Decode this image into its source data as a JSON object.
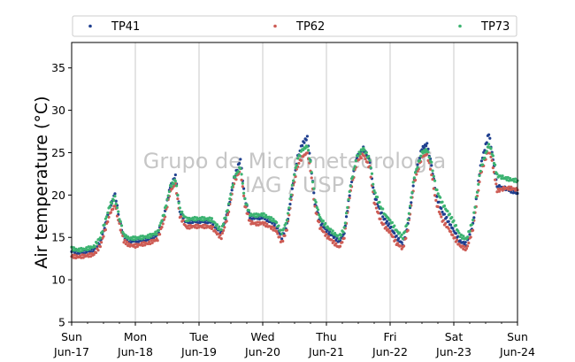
{
  "chart_data": {
    "type": "scatter",
    "ylabel": "Air temperature (°C)",
    "ylim": [
      5,
      38
    ],
    "yticks": [
      5,
      10,
      15,
      20,
      25,
      30,
      35
    ],
    "xlim_days": [
      17,
      24
    ],
    "x_ticks": [
      {
        "day": "Sun",
        "date": "Jun-17"
      },
      {
        "day": "Mon",
        "date": "Jun-18"
      },
      {
        "day": "Tue",
        "date": "Jun-19"
      },
      {
        "day": "Wed",
        "date": "Jun-20"
      },
      {
        "day": "Thu",
        "date": "Jun-21"
      },
      {
        "day": "Fri",
        "date": "Jun-22"
      },
      {
        "day": "Sat",
        "date": "Jun-23"
      },
      {
        "day": "Sun",
        "date": "Jun-24"
      }
    ],
    "grid": "vertical",
    "legend_placement": "top",
    "watermark": [
      "Grupo de Micrometeorologia",
      "IAG / USP"
    ],
    "series": [
      {
        "name": "TP41",
        "color": "#1f3f8f",
        "points": [
          [
            17.0,
            13.4
          ],
          [
            17.1,
            13.2
          ],
          [
            17.2,
            13.3
          ],
          [
            17.35,
            13.5
          ],
          [
            17.45,
            14.5
          ],
          [
            17.55,
            17.0
          ],
          [
            17.6,
            18.5
          ],
          [
            17.68,
            20.2
          ],
          [
            17.75,
            17.0
          ],
          [
            17.82,
            15.0
          ],
          [
            17.9,
            14.6
          ],
          [
            18.0,
            14.6
          ],
          [
            18.1,
            14.7
          ],
          [
            18.2,
            14.8
          ],
          [
            18.35,
            15.3
          ],
          [
            18.45,
            17.5
          ],
          [
            18.55,
            21.0
          ],
          [
            18.63,
            22.3
          ],
          [
            18.7,
            18.0
          ],
          [
            18.8,
            16.8
          ],
          [
            18.9,
            16.9
          ],
          [
            19.0,
            16.9
          ],
          [
            19.1,
            16.9
          ],
          [
            19.2,
            16.8
          ],
          [
            19.3,
            15.9
          ],
          [
            19.35,
            15.5
          ],
          [
            19.45,
            18.0
          ],
          [
            19.55,
            22.0
          ],
          [
            19.65,
            24.2
          ],
          [
            19.72,
            19.5
          ],
          [
            19.8,
            17.4
          ],
          [
            19.9,
            17.3
          ],
          [
            20.0,
            17.4
          ],
          [
            20.1,
            17.0
          ],
          [
            20.2,
            16.5
          ],
          [
            20.3,
            15.0
          ],
          [
            20.38,
            16.5
          ],
          [
            20.48,
            21.5
          ],
          [
            20.55,
            24.5
          ],
          [
            20.62,
            26.0
          ],
          [
            20.7,
            26.8
          ],
          [
            20.75,
            24.0
          ],
          [
            20.82,
            19.0
          ],
          [
            20.9,
            16.8
          ],
          [
            21.0,
            15.8
          ],
          [
            21.1,
            15.2
          ],
          [
            21.2,
            14.5
          ],
          [
            21.28,
            15.5
          ],
          [
            21.38,
            21.0
          ],
          [
            21.48,
            24.5
          ],
          [
            21.58,
            25.5
          ],
          [
            21.68,
            24.0
          ],
          [
            21.75,
            20.0
          ],
          [
            21.85,
            18.0
          ],
          [
            21.92,
            17.0
          ],
          [
            22.0,
            16.3
          ],
          [
            22.1,
            15.0
          ],
          [
            22.2,
            14.2
          ],
          [
            22.28,
            16.5
          ],
          [
            22.38,
            22.0
          ],
          [
            22.5,
            25.5
          ],
          [
            22.58,
            26.0
          ],
          [
            22.65,
            23.5
          ],
          [
            22.72,
            20.0
          ],
          [
            22.82,
            18.0
          ],
          [
            22.92,
            16.8
          ],
          [
            23.0,
            15.8
          ],
          [
            23.1,
            14.5
          ],
          [
            23.2,
            14.2
          ],
          [
            23.3,
            16.5
          ],
          [
            23.42,
            23.5
          ],
          [
            23.55,
            27.3
          ],
          [
            23.6,
            25.0
          ],
          [
            23.68,
            21.0
          ],
          [
            23.8,
            20.8
          ],
          [
            23.9,
            20.5
          ],
          [
            24.0,
            20.2
          ]
        ]
      },
      {
        "name": "TP62",
        "color": "#cd5c55",
        "points": [
          [
            17.0,
            12.8
          ],
          [
            17.1,
            12.7
          ],
          [
            17.2,
            12.8
          ],
          [
            17.35,
            13.0
          ],
          [
            17.45,
            14.0
          ],
          [
            17.55,
            16.5
          ],
          [
            17.6,
            17.8
          ],
          [
            17.68,
            18.8
          ],
          [
            17.75,
            16.5
          ],
          [
            17.82,
            14.6
          ],
          [
            17.9,
            14.1
          ],
          [
            18.0,
            14.0
          ],
          [
            18.1,
            14.2
          ],
          [
            18.2,
            14.3
          ],
          [
            18.35,
            14.8
          ],
          [
            18.45,
            17.0
          ],
          [
            18.55,
            20.5
          ],
          [
            18.63,
            21.3
          ],
          [
            18.7,
            17.5
          ],
          [
            18.8,
            16.2
          ],
          [
            18.9,
            16.3
          ],
          [
            19.0,
            16.3
          ],
          [
            19.1,
            16.3
          ],
          [
            19.2,
            16.2
          ],
          [
            19.3,
            15.3
          ],
          [
            19.35,
            15.0
          ],
          [
            19.45,
            17.5
          ],
          [
            19.55,
            21.5
          ],
          [
            19.65,
            23.0
          ],
          [
            19.72,
            18.8
          ],
          [
            19.8,
            16.8
          ],
          [
            19.9,
            16.6
          ],
          [
            20.0,
            16.7
          ],
          [
            20.1,
            16.3
          ],
          [
            20.2,
            15.9
          ],
          [
            20.3,
            14.4
          ],
          [
            20.38,
            16.0
          ],
          [
            20.48,
            21.0
          ],
          [
            20.55,
            23.5
          ],
          [
            20.62,
            24.5
          ],
          [
            20.7,
            25.0
          ],
          [
            20.75,
            23.0
          ],
          [
            20.82,
            18.5
          ],
          [
            20.9,
            16.2
          ],
          [
            21.0,
            15.2
          ],
          [
            21.1,
            14.5
          ],
          [
            21.2,
            13.8
          ],
          [
            21.28,
            15.0
          ],
          [
            21.38,
            20.5
          ],
          [
            21.48,
            24.0
          ],
          [
            21.58,
            24.8
          ],
          [
            21.68,
            23.2
          ],
          [
            21.75,
            19.2
          ],
          [
            21.85,
            17.0
          ],
          [
            21.92,
            16.2
          ],
          [
            22.0,
            15.6
          ],
          [
            22.1,
            14.3
          ],
          [
            22.2,
            13.7
          ],
          [
            22.28,
            16.0
          ],
          [
            22.38,
            21.5
          ],
          [
            22.5,
            24.5
          ],
          [
            22.58,
            24.8
          ],
          [
            22.65,
            22.5
          ],
          [
            22.72,
            19.2
          ],
          [
            22.82,
            17.0
          ],
          [
            22.92,
            16.0
          ],
          [
            23.0,
            15.0
          ],
          [
            23.1,
            14.0
          ],
          [
            23.2,
            13.6
          ],
          [
            23.3,
            16.0
          ],
          [
            23.42,
            22.5
          ],
          [
            23.55,
            25.5
          ],
          [
            23.6,
            24.0
          ],
          [
            23.68,
            20.5
          ],
          [
            23.8,
            20.8
          ],
          [
            23.9,
            20.8
          ],
          [
            24.0,
            20.6
          ]
        ]
      },
      {
        "name": "TP73",
        "color": "#3cb371",
        "points": [
          [
            17.0,
            13.7
          ],
          [
            17.1,
            13.5
          ],
          [
            17.2,
            13.6
          ],
          [
            17.35,
            13.9
          ],
          [
            17.45,
            15.0
          ],
          [
            17.55,
            17.5
          ],
          [
            17.6,
            18.8
          ],
          [
            17.68,
            19.7
          ],
          [
            17.75,
            17.3
          ],
          [
            17.82,
            15.3
          ],
          [
            17.9,
            14.9
          ],
          [
            18.0,
            14.9
          ],
          [
            18.1,
            15.0
          ],
          [
            18.2,
            15.1
          ],
          [
            18.35,
            15.6
          ],
          [
            18.45,
            17.8
          ],
          [
            18.55,
            21.0
          ],
          [
            18.63,
            21.8
          ],
          [
            18.7,
            18.3
          ],
          [
            18.8,
            17.1
          ],
          [
            18.9,
            17.2
          ],
          [
            19.0,
            17.2
          ],
          [
            19.1,
            17.2
          ],
          [
            19.2,
            17.1
          ],
          [
            19.3,
            16.2
          ],
          [
            19.35,
            15.9
          ],
          [
            19.45,
            18.3
          ],
          [
            19.55,
            22.0
          ],
          [
            19.65,
            23.3
          ],
          [
            19.72,
            19.4
          ],
          [
            19.8,
            17.7
          ],
          [
            19.9,
            17.6
          ],
          [
            20.0,
            17.7
          ],
          [
            20.1,
            17.3
          ],
          [
            20.2,
            16.9
          ],
          [
            20.3,
            15.5
          ],
          [
            20.38,
            17.0
          ],
          [
            20.48,
            21.8
          ],
          [
            20.55,
            24.3
          ],
          [
            20.62,
            25.3
          ],
          [
            20.7,
            25.8
          ],
          [
            20.75,
            23.8
          ],
          [
            20.82,
            19.5
          ],
          [
            20.9,
            17.3
          ],
          [
            21.0,
            16.3
          ],
          [
            21.1,
            15.6
          ],
          [
            21.2,
            15.0
          ],
          [
            21.28,
            16.0
          ],
          [
            21.38,
            21.2
          ],
          [
            21.48,
            24.6
          ],
          [
            21.58,
            25.5
          ],
          [
            21.68,
            24.2
          ],
          [
            21.75,
            20.5
          ],
          [
            21.85,
            18.7
          ],
          [
            21.92,
            17.7
          ],
          [
            22.0,
            17.0
          ],
          [
            22.1,
            15.8
          ],
          [
            22.2,
            15.0
          ],
          [
            22.28,
            17.0
          ],
          [
            22.38,
            22.2
          ],
          [
            22.5,
            25.0
          ],
          [
            22.58,
            25.3
          ],
          [
            22.65,
            23.7
          ],
          [
            22.72,
            20.8
          ],
          [
            22.82,
            19.0
          ],
          [
            22.92,
            17.8
          ],
          [
            23.0,
            16.8
          ],
          [
            23.1,
            15.2
          ],
          [
            23.2,
            14.8
          ],
          [
            23.3,
            17.0
          ],
          [
            23.42,
            23.0
          ],
          [
            23.55,
            26.0
          ],
          [
            23.6,
            25.0
          ],
          [
            23.68,
            22.3
          ],
          [
            23.8,
            22.0
          ],
          [
            23.9,
            21.8
          ],
          [
            24.0,
            21.7
          ]
        ]
      }
    ]
  }
}
